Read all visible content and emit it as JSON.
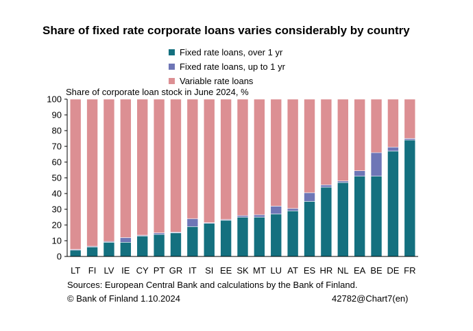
{
  "chart_data": {
    "type": "bar",
    "stacked": true,
    "title": "Share of fixed rate corporate loans varies considerably by country",
    "subtitle": "Share of corporate loan stock in June 2024, %",
    "categories": [
      "LT",
      "FI",
      "LV",
      "IE",
      "CY",
      "PT",
      "GR",
      "IT",
      "SI",
      "EE",
      "SK",
      "MT",
      "LU",
      "AT",
      "ES",
      "HR",
      "NL",
      "EA",
      "BE",
      "DE",
      "FR"
    ],
    "series": [
      {
        "name": "Fixed rate loans, over 1 yr",
        "color": "#14707f",
        "values": [
          4,
          6,
          9,
          9,
          13,
          14,
          15,
          19,
          21,
          23,
          25,
          25,
          27,
          29,
          35,
          44,
          47,
          51,
          51,
          67,
          74
        ]
      },
      {
        "name": "Fixed rate loans, up to 1 yr",
        "color": "#6e76b6",
        "values": [
          0.5,
          0.5,
          0.5,
          3,
          0.5,
          1,
          0.5,
          5,
          0.5,
          0.5,
          1,
          1.5,
          5,
          1.5,
          5.5,
          1.5,
          1,
          3.5,
          15,
          2.5,
          1
        ]
      },
      {
        "name": "Variable rate loans",
        "color": "#dc8f93",
        "values": [
          95.5,
          93.5,
          90.5,
          88,
          86.5,
          85,
          84.5,
          76,
          78.5,
          76.5,
          74,
          73.5,
          68,
          69.5,
          59.5,
          54.5,
          52,
          45.5,
          34,
          30.5,
          25
        ]
      }
    ],
    "ylim": [
      0,
      100
    ],
    "yticks": [
      0,
      10,
      20,
      30,
      40,
      50,
      60,
      70,
      80,
      90,
      100
    ],
    "grid": false,
    "legend_position": "top-center"
  },
  "footer": {
    "sources": "Sources: European Central Bank and calculations by the Bank of Finland.",
    "copyright": "© Bank of Finland 1.10.2024",
    "chart_id": "42782@Chart7(en)"
  }
}
